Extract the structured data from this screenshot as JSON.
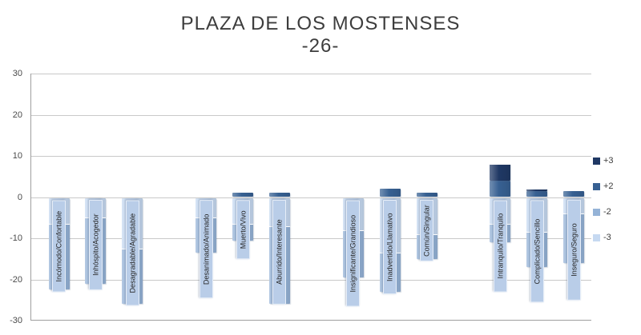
{
  "title": {
    "line1": "PLAZA DE LOS MOSTENSES",
    "line2": "-26-"
  },
  "chart_data": {
    "type": "bar",
    "stacked": true,
    "orientation": "vertical",
    "title": "PLAZA DE LOS MOSTENSES",
    "subtitle": "-26-",
    "ylim": [
      -30,
      30
    ],
    "yticks": [
      30,
      20,
      10,
      0,
      -10,
      -20,
      -30
    ],
    "grid": true,
    "legend_position": "right",
    "categories": [
      "Incómodo/Confortable",
      "Inhóspito/Acogedor",
      "Desagradable/Agradable",
      "",
      "Desanimado/Animado",
      "Muerto/Vivo",
      "Aburrido/Interesante",
      "",
      "Insignificante/Grandioso",
      "Inadvertido/Llamativo",
      "Común/Singular",
      "",
      "Intranquilo/Tranquilo",
      "Complicado/Sencillo",
      "Inseguro/Seguro"
    ],
    "series": [
      {
        "name": "+3",
        "color": "#1f3864",
        "values": [
          0,
          0,
          0,
          0,
          0,
          0,
          0,
          0,
          0,
          0,
          0,
          0,
          4,
          0.5,
          0
        ]
      },
      {
        "name": "+2",
        "color": "#376092",
        "values": [
          0,
          0,
          0,
          0,
          0,
          1,
          1,
          0,
          0,
          2,
          1,
          0,
          4,
          1.5,
          1.5
        ]
      },
      {
        "name": "-2",
        "color": "#95b3d7",
        "values": [
          -16,
          -16,
          -13.5,
          0,
          -8.5,
          -4,
          -19,
          0,
          -11.5,
          -9.5,
          -6,
          0,
          -4.5,
          -8.5,
          -12
        ]
      },
      {
        "name": "-3",
        "color": "#c6d9f1",
        "values": [
          -6.5,
          -5,
          -12.5,
          0,
          -5,
          -6.5,
          -7,
          0,
          -8,
          -13.5,
          -9,
          0,
          -6.5,
          -8.5,
          -4
        ]
      }
    ],
    "category_label_extent": [
      -23,
      -22.5,
      -26.3,
      0,
      -24.5,
      -15,
      -26,
      0,
      -26.5,
      -23.5,
      -15.5,
      0,
      -23,
      -25.5,
      -25
    ],
    "label_box_color": "#b9cde8"
  }
}
